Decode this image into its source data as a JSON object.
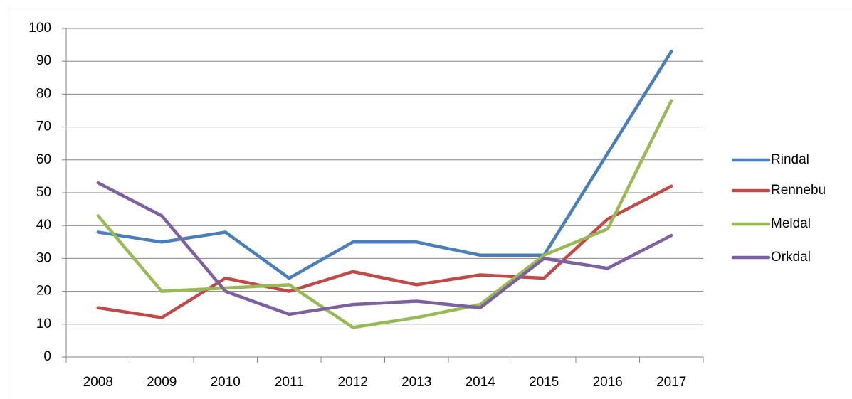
{
  "chart_data": {
    "type": "line",
    "categories": [
      "2008",
      "2009",
      "2010",
      "2011",
      "2012",
      "2013",
      "2014",
      "2015",
      "2016",
      "2017"
    ],
    "series": [
      {
        "name": "Rindal",
        "color": "#4a7ebb",
        "values": [
          38,
          35,
          38,
          24,
          35,
          35,
          31,
          31,
          62,
          93
        ]
      },
      {
        "name": "Rennebu",
        "color": "#be4b48",
        "values": [
          15,
          12,
          24,
          20,
          26,
          22,
          25,
          24,
          42,
          52
        ]
      },
      {
        "name": "Meldal",
        "color": "#98b954",
        "values": [
          43,
          20,
          21,
          22,
          9,
          12,
          16,
          31,
          39,
          78
        ]
      },
      {
        "name": "Orkdal",
        "color": "#7d60a0",
        "values": [
          53,
          43,
          20,
          13,
          16,
          17,
          15,
          30,
          27,
          37
        ]
      }
    ],
    "ylim": [
      0,
      100
    ],
    "yticks": [
      0,
      10,
      20,
      30,
      40,
      50,
      60,
      70,
      80,
      90,
      100
    ],
    "grid": true,
    "legend": "right"
  }
}
